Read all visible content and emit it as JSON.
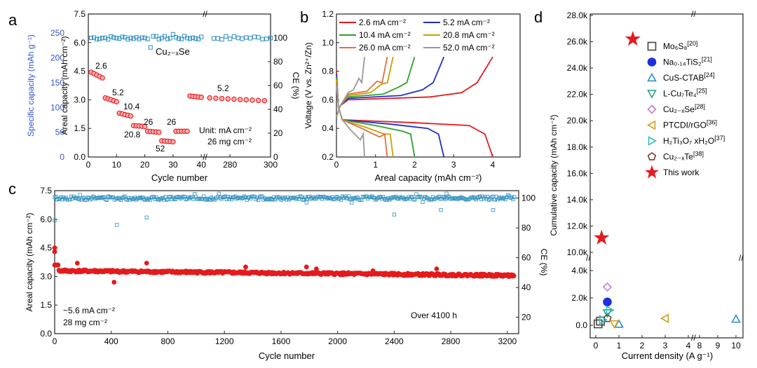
{
  "colors": {
    "red": "#e41a1c",
    "blue": "#1f77b4",
    "ce": "#2c8fbf",
    "axisBlue": "#3355cc",
    "black": "#222222"
  },
  "chart_data": [
    {
      "panel": "a",
      "type": "scatter",
      "xlabel": "Cycle number",
      "ylabel_left": "Areal capacity (mAh cm⁻²)",
      "ylabel_outer": "Specific capacity (mAh g⁻¹)",
      "ylabel_right": "CE (%)",
      "xticks": [
        "0",
        "10",
        "20",
        "30",
        "40",
        "280",
        "300"
      ],
      "yticks_left": [
        "0.0",
        "1.5",
        "3.0",
        "4.5",
        "6.0",
        "7.5"
      ],
      "yticks_outer": [
        "0",
        "50",
        "100",
        "150",
        "200",
        "250"
      ],
      "yticks_right": [
        "0",
        "20",
        "40",
        "60",
        "80",
        "100"
      ],
      "ylim_left": [
        0,
        7.5
      ],
      "ylim_right": [
        0,
        120
      ],
      "material": "Cu₂₋ₓSe",
      "rate_labels": [
        "2.6",
        "5.2",
        "10.4",
        "20.8",
        "26",
        "52",
        "26",
        "5.2"
      ],
      "unit_note": "Unit: mA cm⁻²",
      "mass_note": "26 mg cm⁻²",
      "capacity_steps": [
        {
          "from": 1,
          "to": 6,
          "start": 4.45,
          "end": 4.15
        },
        {
          "from": 6,
          "to": 11,
          "start": 3.1,
          "end": 2.9
        },
        {
          "from": 11,
          "to": 16,
          "start": 2.3,
          "end": 2.15
        },
        {
          "from": 16,
          "to": 21,
          "start": 1.65,
          "end": 1.6
        },
        {
          "from": 21,
          "to": 26,
          "start": 1.35,
          "end": 1.3
        },
        {
          "from": 26,
          "to": 31,
          "start": 0.85,
          "end": 0.8
        },
        {
          "from": 31,
          "to": 36,
          "start": 1.35,
          "end": 1.35
        },
        {
          "from": 36,
          "to": 300,
          "start": 3.2,
          "end": 2.95
        }
      ],
      "ce_typical": 100
    },
    {
      "panel": "b",
      "type": "line",
      "xlabel": "Areal capacity (mAh cm⁻²)",
      "ylabel": "Voltage (V vs. Zn²⁺/Zn)",
      "xticks": [
        "0",
        "1",
        "2",
        "3",
        "4"
      ],
      "yticks": [
        "0.2",
        "0.4",
        "0.6",
        "0.8",
        "1.0",
        "1.2"
      ],
      "xlim": [
        0,
        4.7
      ],
      "ylim": [
        0.2,
        1.2
      ],
      "legend": [
        "2.6 mA cm⁻²",
        "5.2 mA cm⁻²",
        "10.4 mA cm⁻²",
        "20.8 mA cm⁻²",
        "26.0 mA cm⁻²",
        "52.0 mA cm⁻²"
      ],
      "series": [
        {
          "name": "2.6",
          "color": "#e41a1c",
          "capacity": 4.0,
          "charge_max": 0.9
        },
        {
          "name": "5.2",
          "color": "#1f2fcc",
          "capacity": 2.75,
          "charge_max": 0.9
        },
        {
          "name": "10.4",
          "color": "#2ca02c",
          "capacity": 2.0,
          "charge_max": 0.9
        },
        {
          "name": "20.8",
          "color": "#c8a000",
          "capacity": 1.45,
          "charge_max": 0.9
        },
        {
          "name": "26.0",
          "color": "#e07040",
          "capacity": 1.3,
          "charge_max": 0.9
        },
        {
          "name": "52.0",
          "color": "#999999",
          "capacity": 0.72,
          "charge_max": 0.9
        }
      ]
    },
    {
      "panel": "c",
      "type": "scatter",
      "xlabel": "Cycle number",
      "ylabel_left": "Areal capacity (mAh cm⁻²)",
      "ylabel_right": "CE (%)",
      "xticks": [
        "0",
        "400",
        "800",
        "1200",
        "1600",
        "2000",
        "2400",
        "2800",
        "3200"
      ],
      "yticks_left": [
        "0.0",
        "1.5",
        "3.0",
        "4.5",
        "6.0",
        "7.5"
      ],
      "yticks_right": [
        "20",
        "40",
        "60",
        "80",
        "100"
      ],
      "xlim": [
        0,
        3280
      ],
      "ylim_left": [
        0,
        7.5
      ],
      "ylim_right": [
        9,
        105
      ],
      "rate_note": "~5.6 mA cm⁻²",
      "mass_note": "28 mg cm⁻²",
      "time_note": "Over 4100 h",
      "capacity_typical": 3.25,
      "ce_typical": 100
    },
    {
      "panel": "d",
      "type": "scatter",
      "xlabel": "Current density (A g⁻¹)",
      "ylabel": "Cumulative capacity (mAh cm⁻²)",
      "xticks": [
        "0",
        "1",
        "2",
        "3",
        "4",
        "8",
        "9",
        "10"
      ],
      "yticks_upper": [
        "10.0k",
        "12.0k",
        "14.0k",
        "16.0k",
        "18.0k",
        "20.0k",
        "22.0k",
        "24.0k",
        "26.0k",
        "28.0k"
      ],
      "yticks_lower": [
        "0.0",
        "2.0k",
        "4.0k"
      ],
      "points": [
        {
          "name": "Mo6S8",
          "legend": "Mo₆S₈",
          "ref": "[20]",
          "marker": "square",
          "color": "#444444",
          "x": 0.1,
          "y": 100
        },
        {
          "name": "Na0.14TiS2",
          "legend": "Na₀.₁₄TiS₂",
          "ref": "[21]",
          "marker": "circle",
          "color": "#1f2fe0",
          "x": 0.5,
          "y": 1700
        },
        {
          "name": "CuS-CTAB",
          "legend": "CuS-CTAB",
          "ref": "[24]",
          "marker": "triangle-up",
          "color": "#2a8fd0",
          "x": 1.0,
          "y": 80
        },
        {
          "name": "L-Cu7Te4",
          "legend": "L-Cu₇Te₄",
          "ref": "[25]",
          "marker": "triangle-down",
          "color": "#2aa080",
          "x": 0.5,
          "y": 900
        },
        {
          "name": "Cu2-xSe",
          "legend": "Cu₂₋ₓSe",
          "ref": "[28]",
          "marker": "diamond",
          "color": "#c080d0",
          "x": 0.5,
          "y": 2800
        },
        {
          "name": "PTCDI/rGO",
          "legend": "PTCDI/rGO",
          "ref": "[36]",
          "marker": "triangle-left",
          "color": "#d0a020",
          "x": 3.0,
          "y": 500
        },
        {
          "name": "H2Ti3O7 xH2O",
          "legend": "H₂Ti₃O₇ xH₂O",
          "ref": "[37]",
          "marker": "triangle-right",
          "color": "#30c0c0",
          "x": 0.6,
          "y": 1100
        },
        {
          "name": "Cu2-xTe",
          "legend": "Cu₂₋ₓTe",
          "ref": "[38]",
          "marker": "pentagon",
          "color": "#7a4030",
          "x": 0.5,
          "y": 500
        },
        {
          "name": "This work",
          "legend": "This work",
          "ref": "",
          "marker": "star",
          "color": "#e41a1c",
          "x": 0.25,
          "y": 11100
        },
        {
          "name": "This work",
          "legend": "",
          "ref": "",
          "marker": "star",
          "color": "#e41a1c",
          "x": 1.6,
          "y": 26200
        }
      ],
      "extra_low_points": [
        {
          "marker": "square",
          "color": "#444444",
          "x": 0.2,
          "y": 300
        },
        {
          "marker": "triangle-down",
          "color": "#d0a020",
          "x": 0.8,
          "y": 100
        },
        {
          "marker": "triangle-right",
          "color": "#30c0c0",
          "x": 0.3,
          "y": 400
        },
        {
          "marker": "triangle-up",
          "color": "#2a8fd0",
          "x": 10.0,
          "y": 450
        }
      ]
    }
  ]
}
